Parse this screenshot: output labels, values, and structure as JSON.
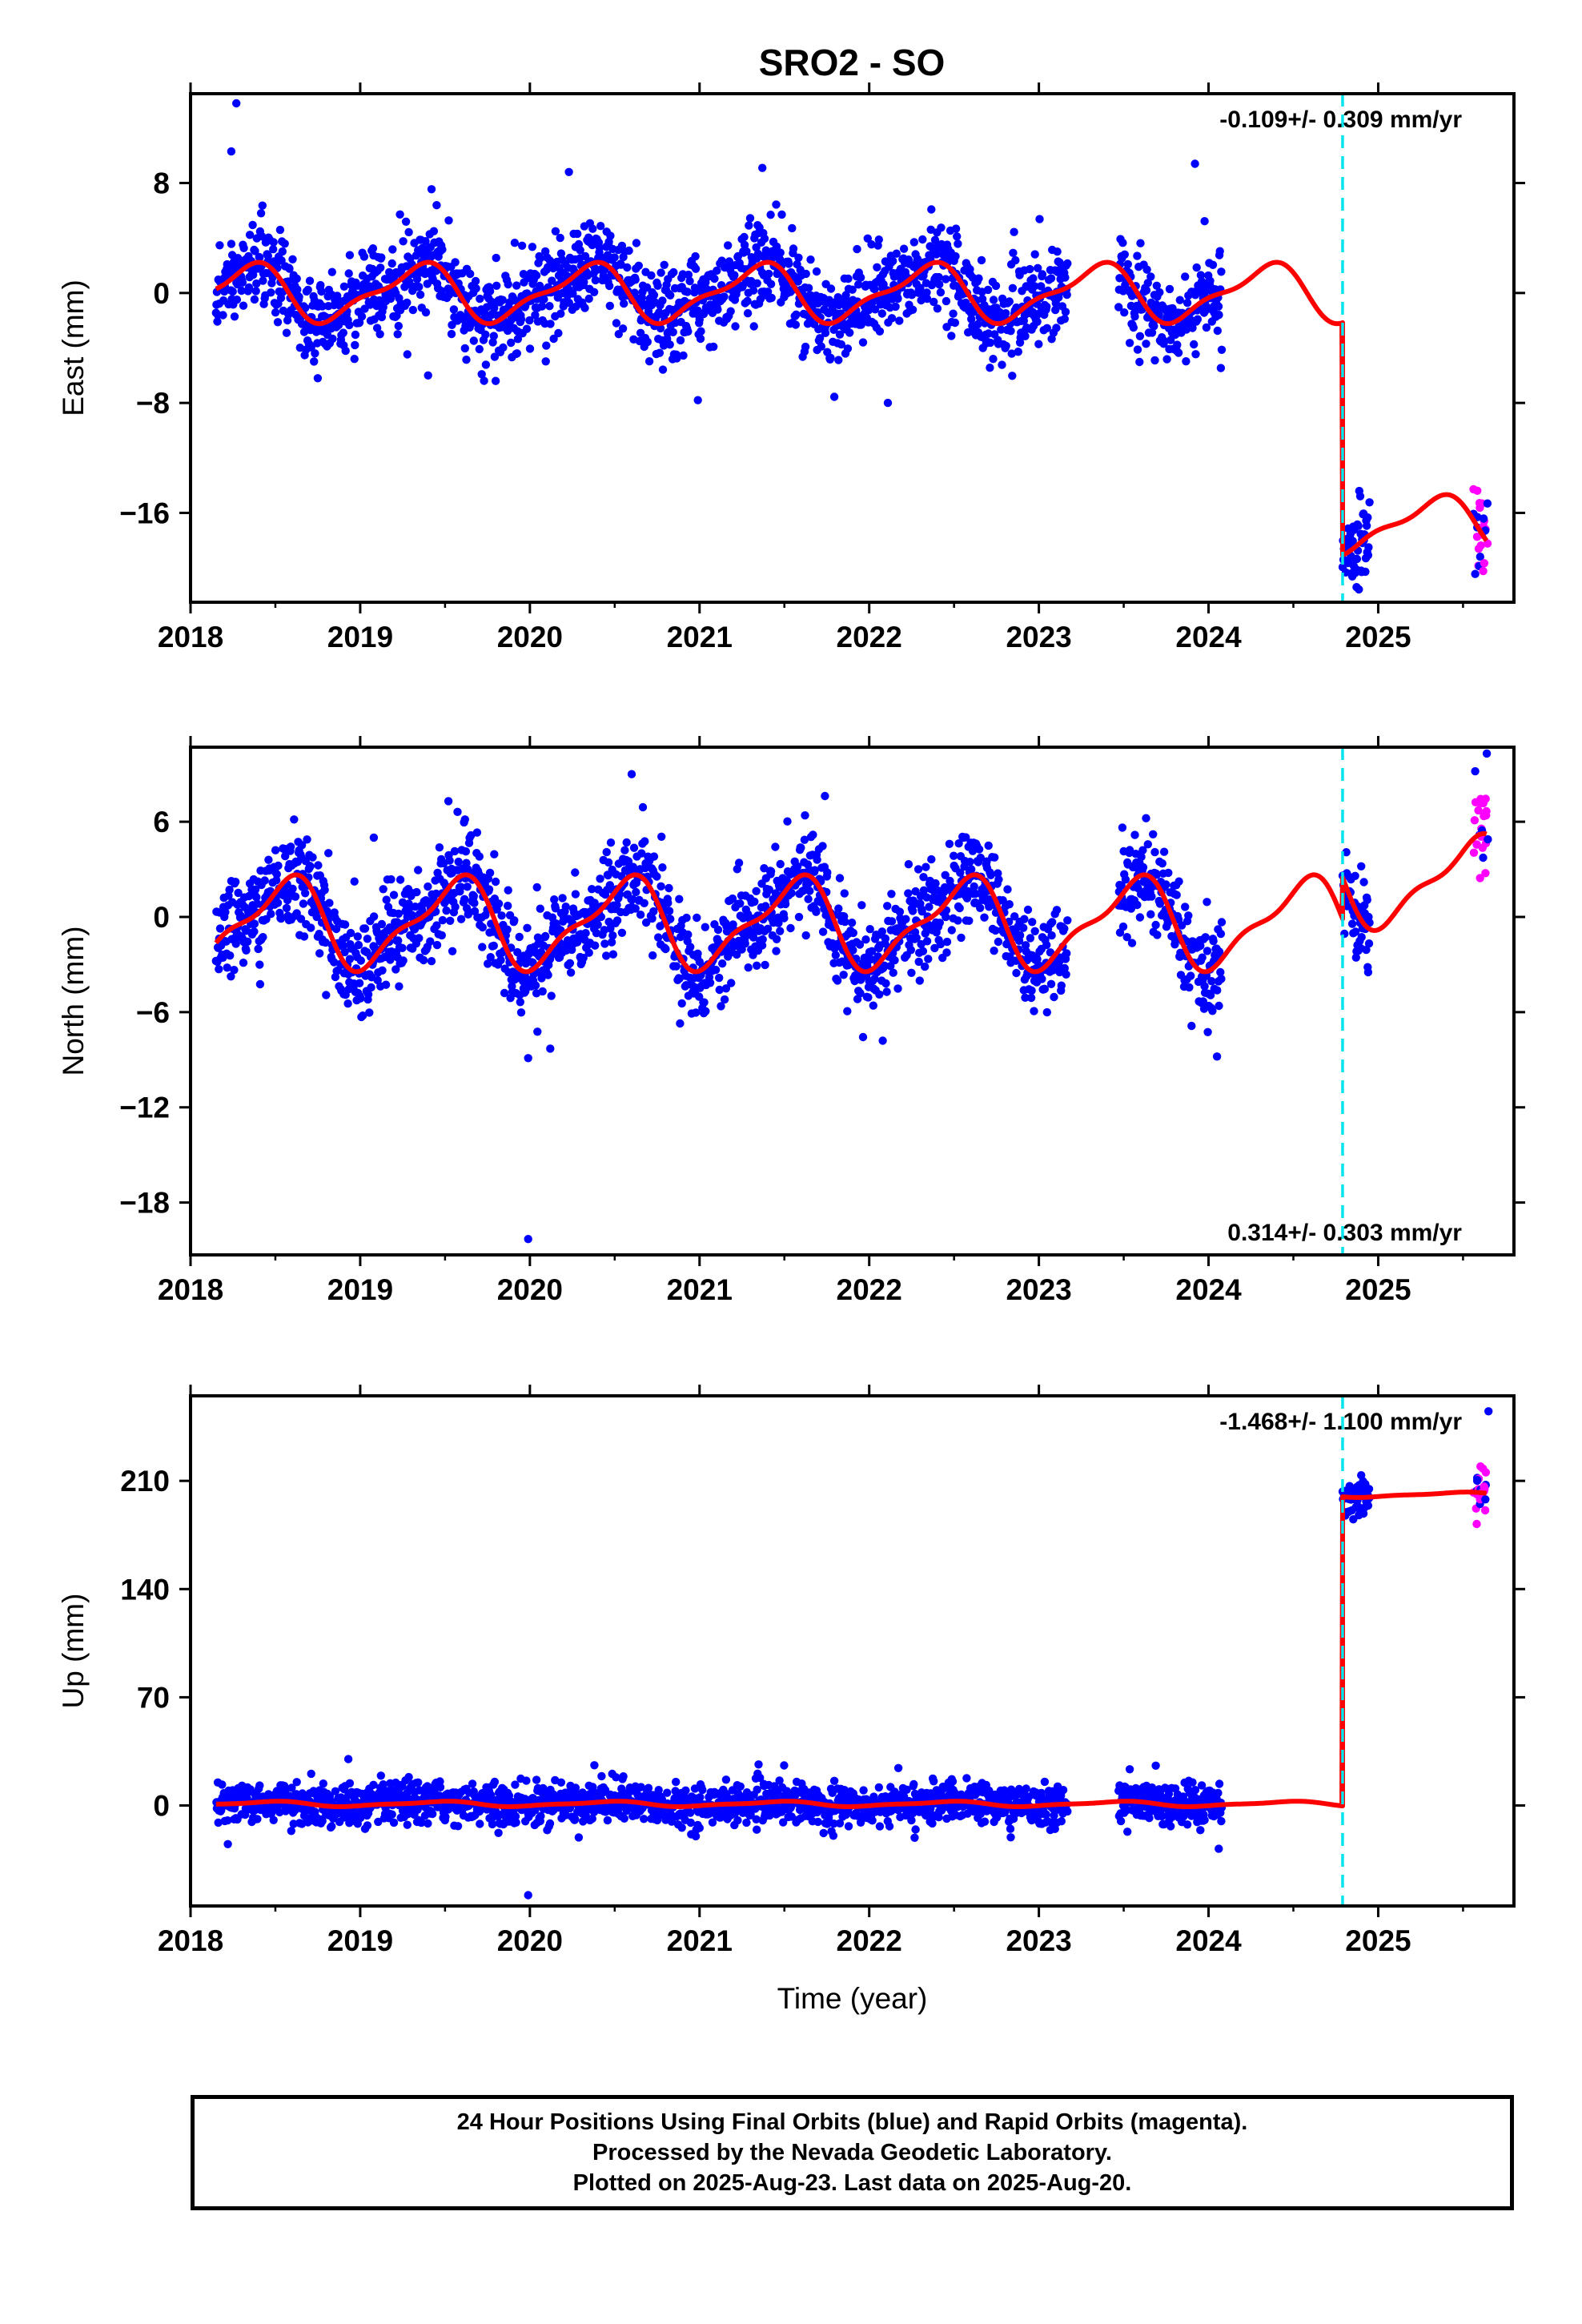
{
  "title": "SRO2 - SO",
  "colors": {
    "final_orbits": "#0000ff",
    "rapid_orbits": "#ff00ff",
    "model": "#ff0000",
    "offset_marker": "#00e5ee"
  },
  "caption": {
    "line1": "24 Hour Positions Using Final Orbits (blue) and Rapid Orbits (magenta).",
    "line2": "Processed by the Nevada Geodetic Laboratory.",
    "line3": "Plotted on 2025-Aug-23. Last data on 2025-Aug-20."
  },
  "chart_data": [
    {
      "type": "scatter",
      "component": "east",
      "ylabel": "East (mm)",
      "xlabel": "",
      "xlim": [
        2018.0,
        2025.8
      ],
      "ylim": [
        -22.5,
        14.5
      ],
      "xticks": [
        2018,
        2019,
        2020,
        2021,
        2022,
        2023,
        2024,
        2025
      ],
      "yticks": [
        8,
        0,
        -8,
        -16
      ],
      "ytick_labels": [
        "8",
        "0",
        "−8",
        "−16"
      ],
      "rate_label": "-0.109+/- 0.309 mm/yr",
      "rate_label_position": "top-right",
      "offset_marker_year": 2024.79,
      "data_spans": [
        [
          2018.15,
          2023.17
        ],
        [
          2023.47,
          2024.08
        ],
        [
          2024.79,
          2024.95
        ]
      ],
      "rapid_span": [
        2025.57,
        2025.64
      ],
      "scatter_sigma": 1.6,
      "model": {
        "annual_amplitude": 1.9,
        "annual_phase": 2018.33,
        "offset_year": 2024.79,
        "level_before": 0.0,
        "level_after": -16.9,
        "rapid_shift": 0.0
      },
      "outliers": [
        [
          2018.27,
          13.8
        ],
        [
          2018.24,
          10.3
        ],
        [
          2023.92,
          9.4
        ],
        [
          2021.37,
          9.1
        ],
        [
          2020.23,
          8.8
        ],
        [
          2018.75,
          -6.2
        ],
        [
          2022.11,
          -8.0
        ],
        [
          2020.99,
          -7.8
        ],
        [
          2019.4,
          -6.0
        ]
      ]
    },
    {
      "type": "scatter",
      "component": "north",
      "ylabel": "North (mm)",
      "xlabel": "",
      "xlim": [
        2018.0,
        2025.8
      ],
      "ylim": [
        -21.3,
        10.7
      ],
      "xticks": [
        2018,
        2019,
        2020,
        2021,
        2022,
        2023,
        2024,
        2025
      ],
      "yticks": [
        6,
        0,
        -6,
        -12,
        -18
      ],
      "ytick_labels": [
        "6",
        "0",
        "−6",
        "−12",
        "−18"
      ],
      "rate_label": "0.314+/- 0.303 mm/yr",
      "rate_label_position": "bottom-right",
      "offset_marker_year": 2024.79,
      "data_spans": [
        [
          2018.15,
          2023.17
        ],
        [
          2023.47,
          2024.08
        ],
        [
          2024.79,
          2024.95
        ]
      ],
      "rapid_span": [
        2025.57,
        2025.64
      ],
      "scatter_sigma": 1.5,
      "model": {
        "annual_amplitude": 2.6,
        "annual_phase": 2018.55,
        "offset_year": 2024.79,
        "level_before": -0.4,
        "level_after": 2.2,
        "rapid_shift": 4.0
      },
      "outliers": [
        [
          2019.99,
          -20.3
        ],
        [
          2019.99,
          -8.9
        ],
        [
          2020.12,
          -8.3
        ],
        [
          2020.6,
          9.0
        ],
        [
          2024.05,
          -8.8
        ],
        [
          2022.08,
          -7.8
        ],
        [
          2019.08,
          5.0
        ],
        [
          2025.64,
          10.3
        ],
        [
          2019.52,
          7.3
        ]
      ]
    },
    {
      "type": "scatter",
      "component": "up",
      "ylabel": "Up (mm)",
      "xlabel": "Time (year)",
      "xlim": [
        2018.0,
        2025.8
      ],
      "ylim": [
        -65,
        265
      ],
      "xticks": [
        2018,
        2019,
        2020,
        2021,
        2022,
        2023,
        2024,
        2025
      ],
      "yticks": [
        210,
        140,
        70,
        0
      ],
      "ytick_labels": [
        "210",
        "140",
        "70",
        "0"
      ],
      "rate_label": "-1.468+/- 1.100 mm/yr",
      "rate_label_position": "top-right",
      "offset_marker_year": 2024.79,
      "data_spans": [
        [
          2018.15,
          2023.17
        ],
        [
          2023.47,
          2024.08
        ],
        [
          2024.79,
          2024.95
        ]
      ],
      "rapid_span": [
        2025.57,
        2025.64
      ],
      "scatter_sigma": 6.5,
      "model": {
        "annual_amplitude": 1.5,
        "annual_phase": 2018.45,
        "offset_year": 2024.79,
        "level_before": 1.0,
        "level_after": 201.0,
        "rapid_shift": 0.0
      },
      "outliers": [
        [
          2019.99,
          -58.0
        ],
        [
          2018.22,
          -25.0
        ],
        [
          2025.65,
          255.0
        ],
        [
          2024.06,
          -28.0
        ],
        [
          2018.93,
          30.0
        ],
        [
          2020.38,
          26.0
        ]
      ]
    }
  ]
}
